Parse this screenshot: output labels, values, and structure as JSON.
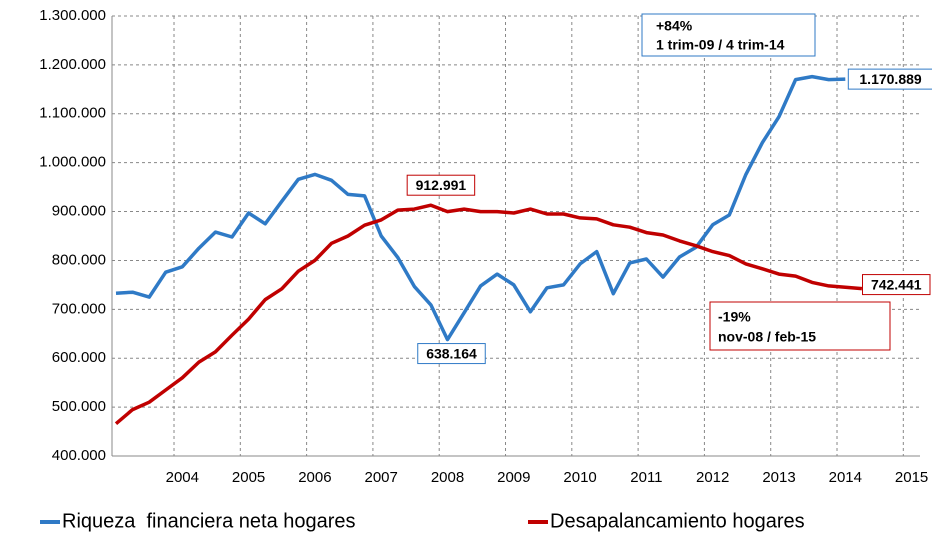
{
  "chart_data": {
    "type": "line",
    "categories": [
      null,
      null,
      null,
      "2004",
      null,
      null,
      null,
      "2005",
      null,
      null,
      null,
      "2006",
      null,
      null,
      null,
      "2007",
      null,
      null,
      null,
      "2008",
      null,
      null,
      null,
      "2009",
      null,
      null,
      null,
      "2010",
      null,
      null,
      null,
      "2011",
      null,
      null,
      null,
      "2012",
      null,
      null,
      null,
      "2013",
      null,
      null,
      null,
      "2014",
      null,
      null,
      null,
      "2015",
      null
    ],
    "series": [
      {
        "name": "Riqueza  financiera neta hogares",
        "color": "#2f7ac6",
        "values": [
          733000,
          735000,
          725000,
          776000,
          787000,
          825000,
          858000,
          848000,
          897000,
          875000,
          921000,
          966000,
          976000,
          964000,
          935000,
          932000,
          850000,
          806000,
          747000,
          709000,
          638164,
          693000,
          748000,
          772000,
          750000,
          695000,
          744000,
          750000,
          793000,
          818000,
          732000,
          795000,
          803000,
          766000,
          807000,
          827000,
          873000,
          893000,
          976000,
          1041000,
          1094000,
          1170000,
          1176000,
          1170000,
          1170889,
          null,
          null,
          null,
          null
        ],
        "value_labels": [
          null,
          null,
          null,
          null,
          null,
          null,
          null,
          null,
          null,
          null,
          null,
          null,
          null,
          null,
          null,
          null,
          null,
          null,
          null,
          null,
          "638.164",
          null,
          null,
          null,
          null,
          null,
          null,
          null,
          null,
          null,
          null,
          null,
          null,
          null,
          null,
          null,
          null,
          null,
          null,
          null,
          null,
          null,
          null,
          null,
          "1.170.889",
          null,
          null,
          null,
          null
        ]
      },
      {
        "name": "Desapalancamiento hogares",
        "color": "#c00000",
        "values": [
          466000,
          495000,
          510000,
          535000,
          560000,
          592000,
          613000,
          647000,
          680000,
          720000,
          742000,
          778000,
          800000,
          835000,
          850000,
          872000,
          883000,
          903000,
          905000,
          912991,
          900000,
          905000,
          900000,
          900000,
          897000,
          905000,
          895000,
          895000,
          887000,
          885000,
          873000,
          868000,
          857000,
          852000,
          840000,
          830000,
          818000,
          810000,
          793000,
          783000,
          772000,
          768000,
          755000,
          748000,
          745000,
          742441,
          null,
          null,
          null
        ],
        "value_labels": [
          null,
          null,
          null,
          null,
          null,
          null,
          null,
          null,
          null,
          null,
          null,
          null,
          null,
          null,
          null,
          null,
          null,
          null,
          null,
          "912.991",
          null,
          null,
          null,
          null,
          null,
          null,
          null,
          null,
          null,
          null,
          null,
          null,
          null,
          null,
          null,
          null,
          null,
          null,
          null,
          null,
          null,
          null,
          null,
          null,
          null,
          "742.441",
          null,
          null,
          null
        ]
      }
    ],
    "annotations": [
      "+84%",
      "1 trim-09 / 4 trim-14",
      "-19%",
      "nov-08 / feb-15"
    ],
    "ylim": [
      400000,
      1300000
    ],
    "yticks": [
      {
        "value": 400000,
        "label": "400.000"
      },
      {
        "value": 500000,
        "label": "500.000"
      },
      {
        "value": 600000,
        "label": "600.000"
      },
      {
        "value": 700000,
        "label": "700.000"
      },
      {
        "value": 800000,
        "label": "800.000"
      },
      {
        "value": 900000,
        "label": "900.000"
      },
      {
        "value": 1000000,
        "label": "1.000.000"
      },
      {
        "value": 1100000,
        "label": "1.100.000"
      },
      {
        "value": 1200000,
        "label": "1.200.000"
      },
      {
        "value": 1300000,
        "label": "1.300.000"
      }
    ],
    "grid": true,
    "legend": "bottom"
  }
}
